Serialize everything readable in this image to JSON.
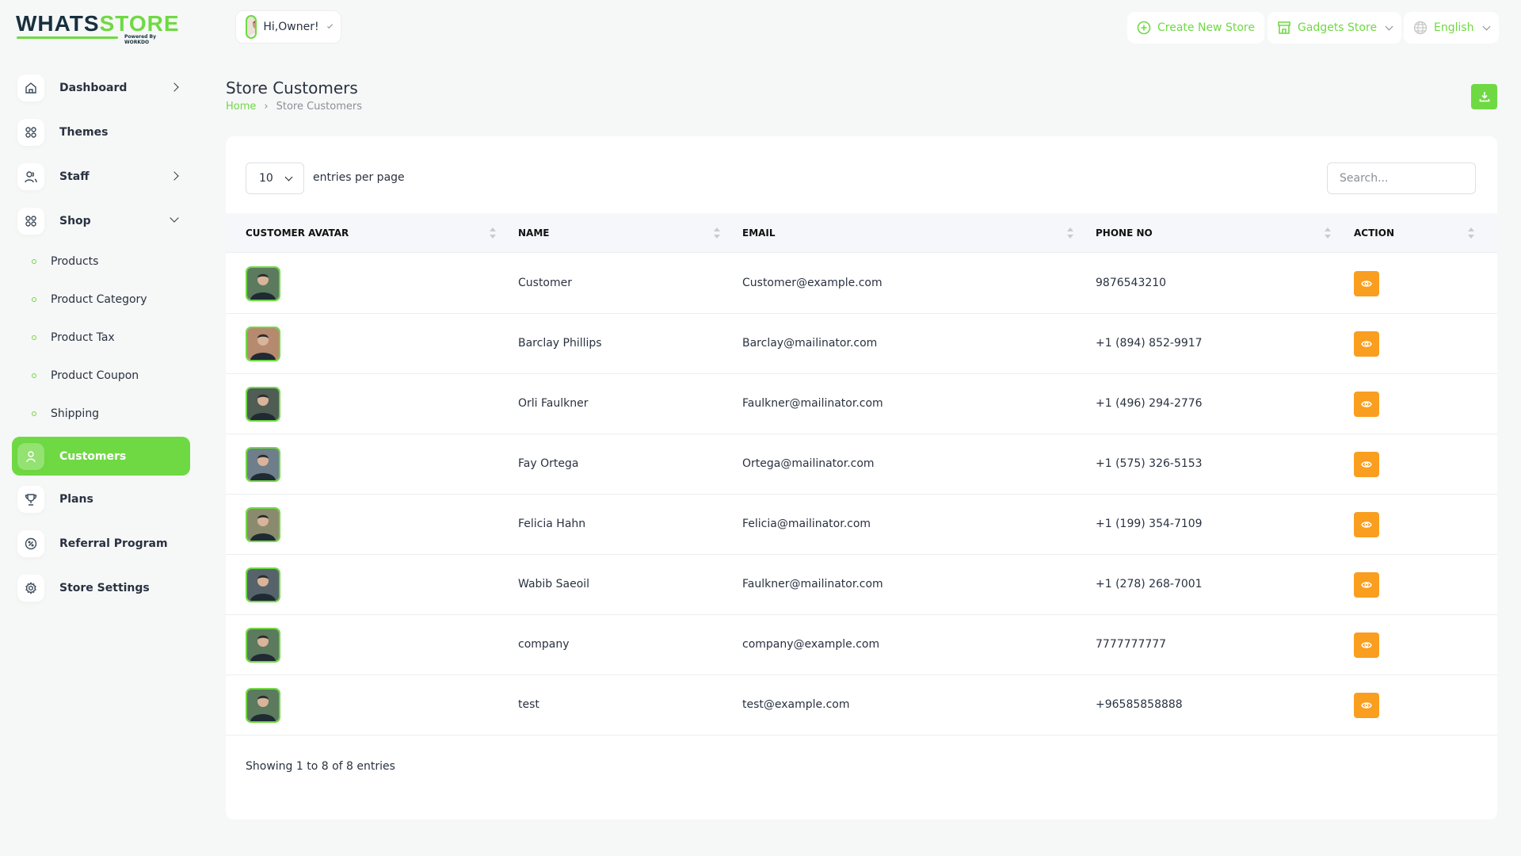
{
  "brand": {
    "logo_a": "WHATS",
    "logo_b": "STORE",
    "powered": "Powered By WORKDO",
    "accent": "#6fd943"
  },
  "header": {
    "greeting": "Hi,Owner!",
    "create_store": "Create New Store",
    "store": "Gadgets Store",
    "language": "English"
  },
  "sidebar": {
    "items": [
      {
        "label": "Dashboard",
        "icon": "home-icon"
      },
      {
        "label": "Themes",
        "icon": "grid-icon"
      },
      {
        "label": "Staff",
        "icon": "users-icon"
      },
      {
        "label": "Shop",
        "icon": "grid-icon"
      },
      {
        "label": "Customers",
        "icon": "user-icon"
      },
      {
        "label": "Plans",
        "icon": "trophy-icon"
      },
      {
        "label": "Referral Program",
        "icon": "discount-icon"
      },
      {
        "label": "Store Settings",
        "icon": "settings-icon"
      }
    ],
    "shop_sub": [
      "Products",
      "Product Category",
      "Product Tax",
      "Product Coupon",
      "Shipping"
    ]
  },
  "page": {
    "title": "Store Customers",
    "breadcrumb": [
      "Home",
      "Store Customers"
    ]
  },
  "table": {
    "entries_value": "10",
    "entries_label": "entries per page",
    "search_placeholder": "Search...",
    "columns": [
      "CUSTOMER AVATAR",
      "NAME",
      "EMAIL",
      "PHONE NO",
      "ACTION"
    ],
    "rows": [
      {
        "name": "Customer",
        "email": "Customer@example.com",
        "phone": "9876543210"
      },
      {
        "name": "Barclay Phillips",
        "email": "Barclay@mailinator.com",
        "phone": "+1 (894) 852-9917"
      },
      {
        "name": "Orli Faulkner",
        "email": "Faulkner@mailinator.com",
        "phone": "+1 (496) 294-2776"
      },
      {
        "name": "Fay Ortega",
        "email": "Ortega@mailinator.com",
        "phone": "+1 (575) 326-5153"
      },
      {
        "name": "Felicia Hahn",
        "email": "Felicia@mailinator.com",
        "phone": "+1 (199) 354-7109"
      },
      {
        "name": "Wabib Saeoil",
        "email": "Faulkner@mailinator.com",
        "phone": "+1 (278) 268-7001"
      },
      {
        "name": "company",
        "email": "company@example.com",
        "phone": "7777777777"
      },
      {
        "name": "test",
        "email": "test@example.com",
        "phone": "+96585858888"
      }
    ],
    "footer": "Showing 1 to 8 of 8 entries"
  }
}
